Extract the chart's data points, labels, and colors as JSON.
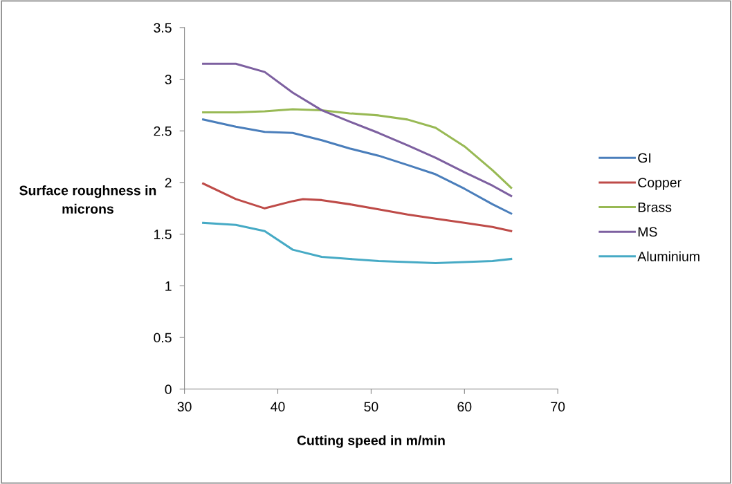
{
  "chart_data": {
    "type": "line",
    "xlabel": "Cutting speed in m/min",
    "ylabel": "Surface roughness in\nmicrons",
    "x": [
      32,
      35.5,
      38.6,
      41.6,
      44.7,
      47.7,
      50.8,
      53.9,
      56.9,
      60,
      63,
      65
    ],
    "series": [
      {
        "name": "GI",
        "color": "#4a7ebb",
        "values": [
          2.61,
          2.54,
          2.49,
          2.48,
          2.41,
          2.33,
          2.26,
          2.17,
          2.08,
          1.94,
          1.79,
          1.7
        ]
      },
      {
        "name": "Copper",
        "color": "#be4b48",
        "x": [
          32,
          35.5,
          38.6,
          41.6,
          42.7,
          44.7,
          47.7,
          50.8,
          53.9,
          56.9,
          60,
          63,
          65
        ],
        "values": [
          1.99,
          1.84,
          1.75,
          1.82,
          1.84,
          1.83,
          1.79,
          1.74,
          1.69,
          1.65,
          1.61,
          1.57,
          1.53
        ]
      },
      {
        "name": "Brass",
        "color": "#98b954",
        "values": [
          2.68,
          2.68,
          2.69,
          2.71,
          2.7,
          2.67,
          2.65,
          2.61,
          2.53,
          2.35,
          2.12,
          1.95
        ]
      },
      {
        "name": "MS",
        "color": "#7d60a0",
        "values": [
          3.15,
          3.15,
          3.07,
          2.87,
          2.7,
          2.59,
          2.48,
          2.36,
          2.24,
          2.1,
          1.97,
          1.87
        ]
      },
      {
        "name": "Aluminium",
        "color": "#46aac5",
        "values": [
          1.61,
          1.59,
          1.53,
          1.35,
          1.28,
          1.26,
          1.24,
          1.23,
          1.22,
          1.23,
          1.24,
          1.26
        ]
      }
    ],
    "xlim": [
      30,
      70
    ],
    "xticks": [
      30,
      40,
      50,
      60,
      70
    ],
    "ylim": [
      0,
      3.5
    ],
    "yticks": [
      0,
      0.5,
      1,
      1.5,
      2,
      2.5,
      3,
      3.5
    ],
    "legend": "right",
    "grid": false,
    "marker": "none",
    "line_style": "solid"
  }
}
